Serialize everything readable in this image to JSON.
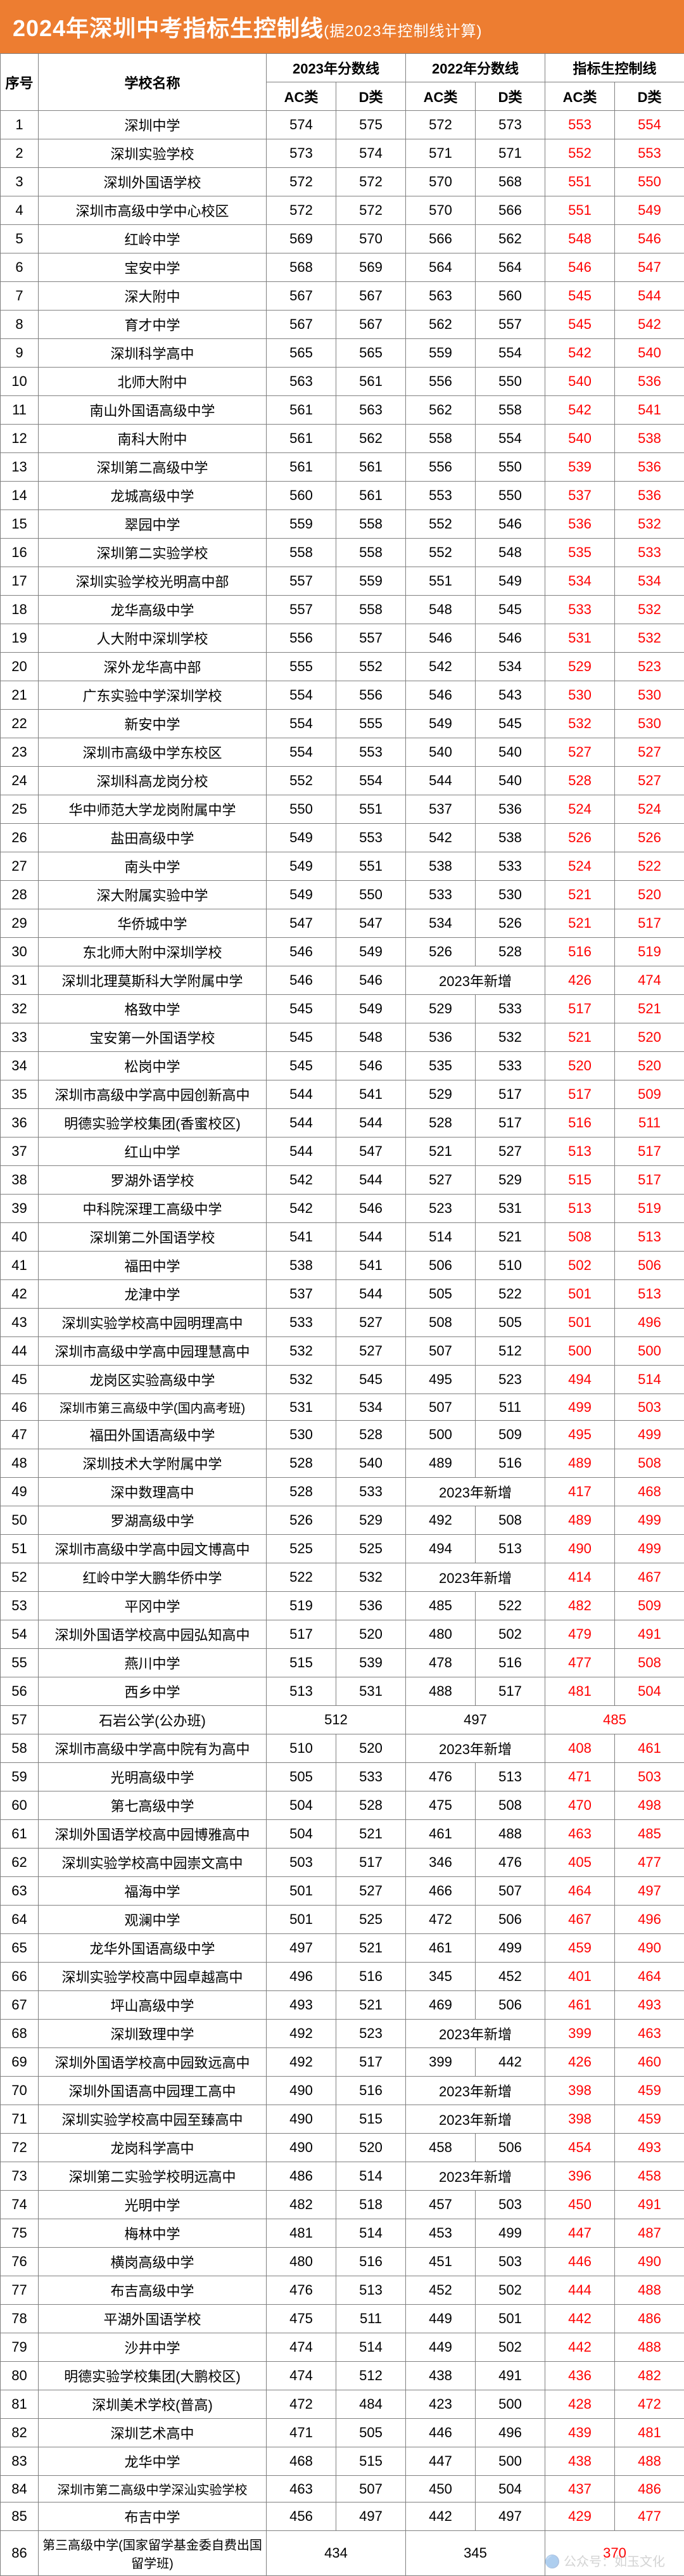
{
  "title_main": "2024年深圳中考指标生控制线",
  "title_sub": "(据2023年控制线计算)",
  "headers": {
    "seq": "序号",
    "school": "学校名称",
    "y2023": "2023年分数线",
    "y2022": "2022年分数线",
    "quota": "指标生控制线",
    "ac": "AC类",
    "d": "D类"
  },
  "new2023": "2023年新增",
  "watermark": "🔵 公众号：如玉文化",
  "rows": [
    {
      "n": 1,
      "s": "深圳中学",
      "a23": "574",
      "d23": "575",
      "a22": "572",
      "d22": "573",
      "aq": "553",
      "dq": "554"
    },
    {
      "n": 2,
      "s": "深圳实验学校",
      "a23": "573",
      "d23": "574",
      "a22": "571",
      "d22": "571",
      "aq": "552",
      "dq": "553"
    },
    {
      "n": 3,
      "s": "深圳外国语学校",
      "a23": "572",
      "d23": "572",
      "a22": "570",
      "d22": "568",
      "aq": "551",
      "dq": "550"
    },
    {
      "n": 4,
      "s": "深圳市高级中学中心校区",
      "a23": "572",
      "d23": "572",
      "a22": "570",
      "d22": "566",
      "aq": "551",
      "dq": "549"
    },
    {
      "n": 5,
      "s": "红岭中学",
      "a23": "569",
      "d23": "570",
      "a22": "566",
      "d22": "562",
      "aq": "548",
      "dq": "546"
    },
    {
      "n": 6,
      "s": "宝安中学",
      "a23": "568",
      "d23": "569",
      "a22": "564",
      "d22": "564",
      "aq": "546",
      "dq": "547"
    },
    {
      "n": 7,
      "s": "深大附中",
      "a23": "567",
      "d23": "567",
      "a22": "563",
      "d22": "560",
      "aq": "545",
      "dq": "544"
    },
    {
      "n": 8,
      "s": "育才中学",
      "a23": "567",
      "d23": "567",
      "a22": "562",
      "d22": "557",
      "aq": "545",
      "dq": "542"
    },
    {
      "n": 9,
      "s": "深圳科学高中",
      "a23": "565",
      "d23": "565",
      "a22": "559",
      "d22": "554",
      "aq": "542",
      "dq": "540"
    },
    {
      "n": 10,
      "s": "北师大附中",
      "a23": "563",
      "d23": "561",
      "a22": "556",
      "d22": "550",
      "aq": "540",
      "dq": "536"
    },
    {
      "n": 11,
      "s": "南山外国语高级中学",
      "a23": "561",
      "d23": "563",
      "a22": "562",
      "d22": "558",
      "aq": "542",
      "dq": "541"
    },
    {
      "n": 12,
      "s": "南科大附中",
      "a23": "561",
      "d23": "562",
      "a22": "558",
      "d22": "554",
      "aq": "540",
      "dq": "538"
    },
    {
      "n": 13,
      "s": "深圳第二高级中学",
      "a23": "561",
      "d23": "561",
      "a22": "556",
      "d22": "550",
      "aq": "539",
      "dq": "536"
    },
    {
      "n": 14,
      "s": "龙城高级中学",
      "a23": "560",
      "d23": "561",
      "a22": "553",
      "d22": "550",
      "aq": "537",
      "dq": "536"
    },
    {
      "n": 15,
      "s": "翠园中学",
      "a23": "559",
      "d23": "558",
      "a22": "552",
      "d22": "546",
      "aq": "536",
      "dq": "532"
    },
    {
      "n": 16,
      "s": "深圳第二实验学校",
      "a23": "558",
      "d23": "558",
      "a22": "552",
      "d22": "548",
      "aq": "535",
      "dq": "533"
    },
    {
      "n": 17,
      "s": "深圳实验学校光明高中部",
      "a23": "557",
      "d23": "559",
      "a22": "551",
      "d22": "549",
      "aq": "534",
      "dq": "534"
    },
    {
      "n": 18,
      "s": "龙华高级中学",
      "a23": "557",
      "d23": "558",
      "a22": "548",
      "d22": "545",
      "aq": "533",
      "dq": "532"
    },
    {
      "n": 19,
      "s": "人大附中深圳学校",
      "a23": "556",
      "d23": "557",
      "a22": "546",
      "d22": "546",
      "aq": "531",
      "dq": "532"
    },
    {
      "n": 20,
      "s": "深外龙华高中部",
      "a23": "555",
      "d23": "552",
      "a22": "542",
      "d22": "534",
      "aq": "529",
      "dq": "523"
    },
    {
      "n": 21,
      "s": "广东实验中学深圳学校",
      "a23": "554",
      "d23": "556",
      "a22": "546",
      "d22": "543",
      "aq": "530",
      "dq": "530"
    },
    {
      "n": 22,
      "s": "新安中学",
      "a23": "554",
      "d23": "555",
      "a22": "549",
      "d22": "545",
      "aq": "532",
      "dq": "530"
    },
    {
      "n": 23,
      "s": "深圳市高级中学东校区",
      "a23": "554",
      "d23": "553",
      "a22": "540",
      "d22": "540",
      "aq": "527",
      "dq": "527"
    },
    {
      "n": 24,
      "s": "深圳科高龙岗分校",
      "a23": "552",
      "d23": "554",
      "a22": "544",
      "d22": "540",
      "aq": "528",
      "dq": "527"
    },
    {
      "n": 25,
      "s": "华中师范大学龙岗附属中学",
      "a23": "550",
      "d23": "551",
      "a22": "537",
      "d22": "536",
      "aq": "524",
      "dq": "524"
    },
    {
      "n": 26,
      "s": "盐田高级中学",
      "a23": "549",
      "d23": "553",
      "a22": "542",
      "d22": "538",
      "aq": "526",
      "dq": "526"
    },
    {
      "n": 27,
      "s": "南头中学",
      "a23": "549",
      "d23": "551",
      "a22": "538",
      "d22": "533",
      "aq": "524",
      "dq": "522"
    },
    {
      "n": 28,
      "s": "深大附属实验中学",
      "a23": "549",
      "d23": "550",
      "a22": "533",
      "d22": "530",
      "aq": "521",
      "dq": "520"
    },
    {
      "n": 29,
      "s": "华侨城中学",
      "a23": "547",
      "d23": "547",
      "a22": "534",
      "d22": "526",
      "aq": "521",
      "dq": "517"
    },
    {
      "n": 30,
      "s": "东北师大附中深圳学校",
      "a23": "546",
      "d23": "549",
      "a22": "526",
      "d22": "528",
      "aq": "516",
      "dq": "519"
    },
    {
      "n": 31,
      "s": "深圳北理莫斯科大学附属中学",
      "a23": "546",
      "d23": "546",
      "new22": true,
      "aq": "426",
      "dq": "474"
    },
    {
      "n": 32,
      "s": "格致中学",
      "a23": "545",
      "d23": "549",
      "a22": "529",
      "d22": "533",
      "aq": "517",
      "dq": "521"
    },
    {
      "n": 33,
      "s": "宝安第一外国语学校",
      "a23": "545",
      "d23": "548",
      "a22": "536",
      "d22": "532",
      "aq": "521",
      "dq": "520"
    },
    {
      "n": 34,
      "s": "松岗中学",
      "a23": "545",
      "d23": "546",
      "a22": "535",
      "d22": "533",
      "aq": "520",
      "dq": "520"
    },
    {
      "n": 35,
      "s": "深圳市高级中学高中园创新高中",
      "a23": "544",
      "d23": "541",
      "a22": "529",
      "d22": "517",
      "aq": "517",
      "dq": "509"
    },
    {
      "n": 36,
      "s": "明德实验学校集团(香蜜校区)",
      "a23": "544",
      "d23": "544",
      "a22": "528",
      "d22": "517",
      "aq": "516",
      "dq": "511"
    },
    {
      "n": 37,
      "s": "红山中学",
      "a23": "544",
      "d23": "547",
      "a22": "521",
      "d22": "527",
      "aq": "513",
      "dq": "517"
    },
    {
      "n": 38,
      "s": "罗湖外语学校",
      "a23": "542",
      "d23": "544",
      "a22": "527",
      "d22": "529",
      "aq": "515",
      "dq": "517"
    },
    {
      "n": 39,
      "s": "中科院深理工高级中学",
      "a23": "542",
      "d23": "546",
      "a22": "523",
      "d22": "531",
      "aq": "513",
      "dq": "519"
    },
    {
      "n": 40,
      "s": "深圳第二外国语学校",
      "a23": "541",
      "d23": "544",
      "a22": "514",
      "d22": "521",
      "aq": "508",
      "dq": "513"
    },
    {
      "n": 41,
      "s": "福田中学",
      "a23": "538",
      "d23": "541",
      "a22": "506",
      "d22": "510",
      "aq": "502",
      "dq": "506"
    },
    {
      "n": 42,
      "s": "龙津中学",
      "a23": "537",
      "d23": "544",
      "a22": "505",
      "d22": "522",
      "aq": "501",
      "dq": "513"
    },
    {
      "n": 43,
      "s": "深圳实验学校高中园明理高中",
      "a23": "533",
      "d23": "527",
      "a22": "508",
      "d22": "505",
      "aq": "501",
      "dq": "496"
    },
    {
      "n": 44,
      "s": "深圳市高级中学高中园理慧高中",
      "a23": "532",
      "d23": "527",
      "a22": "507",
      "d22": "512",
      "aq": "500",
      "dq": "500"
    },
    {
      "n": 45,
      "s": "龙岗区实验高级中学",
      "a23": "532",
      "d23": "545",
      "a22": "495",
      "d22": "523",
      "aq": "494",
      "dq": "514"
    },
    {
      "n": 46,
      "s": "深圳市第三高级中学(国内高考班)",
      "a23": "531",
      "d23": "534",
      "a22": "507",
      "d22": "511",
      "aq": "499",
      "dq": "503"
    },
    {
      "n": 47,
      "s": "福田外国语高级中学",
      "a23": "530",
      "d23": "528",
      "a22": "500",
      "d22": "509",
      "aq": "495",
      "dq": "499"
    },
    {
      "n": 48,
      "s": "深圳技术大学附属中学",
      "a23": "528",
      "d23": "540",
      "a22": "489",
      "d22": "516",
      "aq": "489",
      "dq": "508"
    },
    {
      "n": 49,
      "s": "深中数理高中",
      "a23": "528",
      "d23": "533",
      "new22": true,
      "aq": "417",
      "dq": "468"
    },
    {
      "n": 50,
      "s": "罗湖高级中学",
      "a23": "526",
      "d23": "529",
      "a22": "492",
      "d22": "508",
      "aq": "489",
      "dq": "499"
    },
    {
      "n": 51,
      "s": "深圳市高级中学高中园文博高中",
      "a23": "525",
      "d23": "525",
      "a22": "494",
      "d22": "513",
      "aq": "490",
      "dq": "499"
    },
    {
      "n": 52,
      "s": "红岭中学大鹏华侨中学",
      "a23": "522",
      "d23": "532",
      "new22": true,
      "aq": "414",
      "dq": "467"
    },
    {
      "n": 53,
      "s": "平冈中学",
      "a23": "519",
      "d23": "536",
      "a22": "485",
      "d22": "522",
      "aq": "482",
      "dq": "509"
    },
    {
      "n": 54,
      "s": "深圳外国语学校高中园弘知高中",
      "a23": "517",
      "d23": "520",
      "a22": "480",
      "d22": "502",
      "aq": "479",
      "dq": "491"
    },
    {
      "n": 55,
      "s": "燕川中学",
      "a23": "515",
      "d23": "539",
      "a22": "478",
      "d22": "516",
      "aq": "477",
      "dq": "508"
    },
    {
      "n": 56,
      "s": "西乡中学",
      "a23": "513",
      "d23": "531",
      "a22": "488",
      "d22": "517",
      "aq": "481",
      "dq": "504"
    },
    {
      "n": 57,
      "s": "石岩公学(公办班)",
      "m23": "512",
      "m22": "497",
      "mq": "485",
      "merged": true
    },
    {
      "n": 58,
      "s": "深圳市高级中学高中院有为高中",
      "a23": "510",
      "d23": "520",
      "new22": true,
      "aq": "408",
      "dq": "461"
    },
    {
      "n": 59,
      "s": "光明高级中学",
      "a23": "505",
      "d23": "533",
      "a22": "476",
      "d22": "513",
      "aq": "471",
      "dq": "503"
    },
    {
      "n": 60,
      "s": "第七高级中学",
      "a23": "504",
      "d23": "528",
      "a22": "475",
      "d22": "508",
      "aq": "470",
      "dq": "498"
    },
    {
      "n": 61,
      "s": "深圳外国语学校高中园博雅高中",
      "a23": "504",
      "d23": "521",
      "a22": "461",
      "d22": "488",
      "aq": "463",
      "dq": "485"
    },
    {
      "n": 62,
      "s": "深圳实验学校高中园崇文高中",
      "a23": "503",
      "d23": "517",
      "a22": "346",
      "d22": "476",
      "aq": "405",
      "dq": "477"
    },
    {
      "n": 63,
      "s": "福海中学",
      "a23": "501",
      "d23": "527",
      "a22": "466",
      "d22": "507",
      "aq": "464",
      "dq": "497"
    },
    {
      "n": 64,
      "s": "观澜中学",
      "a23": "501",
      "d23": "525",
      "a22": "472",
      "d22": "506",
      "aq": "467",
      "dq": "496"
    },
    {
      "n": 65,
      "s": "龙华外国语高级中学",
      "a23": "497",
      "d23": "521",
      "a22": "461",
      "d22": "499",
      "aq": "459",
      "dq": "490"
    },
    {
      "n": 66,
      "s": "深圳实验学校高中园卓越高中",
      "a23": "496",
      "d23": "516",
      "a22": "345",
      "d22": "452",
      "aq": "401",
      "dq": "464"
    },
    {
      "n": 67,
      "s": "坪山高级中学",
      "a23": "493",
      "d23": "521",
      "a22": "469",
      "d22": "506",
      "aq": "461",
      "dq": "493"
    },
    {
      "n": 68,
      "s": "深圳致理中学",
      "a23": "492",
      "d23": "523",
      "new22": true,
      "aq": "399",
      "dq": "463"
    },
    {
      "n": 69,
      "s": "深圳外国语学校高中园致远高中",
      "a23": "492",
      "d23": "517",
      "a22": "399",
      "d22": "442",
      "aq": "426",
      "dq": "460"
    },
    {
      "n": 70,
      "s": "深圳外国语高中园理工高中",
      "a23": "490",
      "d23": "516",
      "new22": true,
      "aq": "398",
      "dq": "459"
    },
    {
      "n": 71,
      "s": "深圳实验学校高中园至臻高中",
      "a23": "490",
      "d23": "515",
      "new22": true,
      "aq": "398",
      "dq": "459"
    },
    {
      "n": 72,
      "s": "龙岗科学高中",
      "a23": "490",
      "d23": "520",
      "a22": "458",
      "d22": "506",
      "aq": "454",
      "dq": "493"
    },
    {
      "n": 73,
      "s": "深圳第二实验学校明远高中",
      "a23": "486",
      "d23": "514",
      "new22": true,
      "aq": "396",
      "dq": "458"
    },
    {
      "n": 74,
      "s": "光明中学",
      "a23": "482",
      "d23": "518",
      "a22": "457",
      "d22": "503",
      "aq": "450",
      "dq": "491"
    },
    {
      "n": 75,
      "s": "梅林中学",
      "a23": "481",
      "d23": "514",
      "a22": "453",
      "d22": "499",
      "aq": "447",
      "dq": "487"
    },
    {
      "n": 76,
      "s": "横岗高级中学",
      "a23": "480",
      "d23": "516",
      "a22": "451",
      "d22": "503",
      "aq": "446",
      "dq": "490"
    },
    {
      "n": 77,
      "s": "布吉高级中学",
      "a23": "476",
      "d23": "513",
      "a22": "452",
      "d22": "502",
      "aq": "444",
      "dq": "488"
    },
    {
      "n": 78,
      "s": "平湖外国语学校",
      "a23": "475",
      "d23": "511",
      "a22": "449",
      "d22": "501",
      "aq": "442",
      "dq": "486"
    },
    {
      "n": 79,
      "s": "沙井中学",
      "a23": "474",
      "d23": "514",
      "a22": "449",
      "d22": "502",
      "aq": "442",
      "dq": "488"
    },
    {
      "n": 80,
      "s": "明德实验学校集团(大鹏校区)",
      "a23": "474",
      "d23": "512",
      "a22": "438",
      "d22": "491",
      "aq": "436",
      "dq": "482"
    },
    {
      "n": 81,
      "s": "深圳美术学校(普高)",
      "a23": "472",
      "d23": "484",
      "a22": "423",
      "d22": "500",
      "aq": "428",
      "dq": "472"
    },
    {
      "n": 82,
      "s": "深圳艺术高中",
      "a23": "471",
      "d23": "505",
      "a22": "446",
      "d22": "496",
      "aq": "439",
      "dq": "481"
    },
    {
      "n": 83,
      "s": "龙华中学",
      "a23": "468",
      "d23": "515",
      "a22": "447",
      "d22": "500",
      "aq": "438",
      "dq": "488"
    },
    {
      "n": 84,
      "s": "深圳市第二高级中学深汕实验学校",
      "a23": "463",
      "d23": "507",
      "a22": "450",
      "d22": "504",
      "aq": "437",
      "dq": "486"
    },
    {
      "n": 85,
      "s": "布吉中学",
      "a23": "456",
      "d23": "497",
      "a22": "442",
      "d22": "497",
      "aq": "429",
      "dq": "477"
    },
    {
      "n": 86,
      "s": "第三高级中学(国家留学基金委自费出国留学班)",
      "m23": "434",
      "m22": "345",
      "mq": "370",
      "merged": true
    }
  ]
}
